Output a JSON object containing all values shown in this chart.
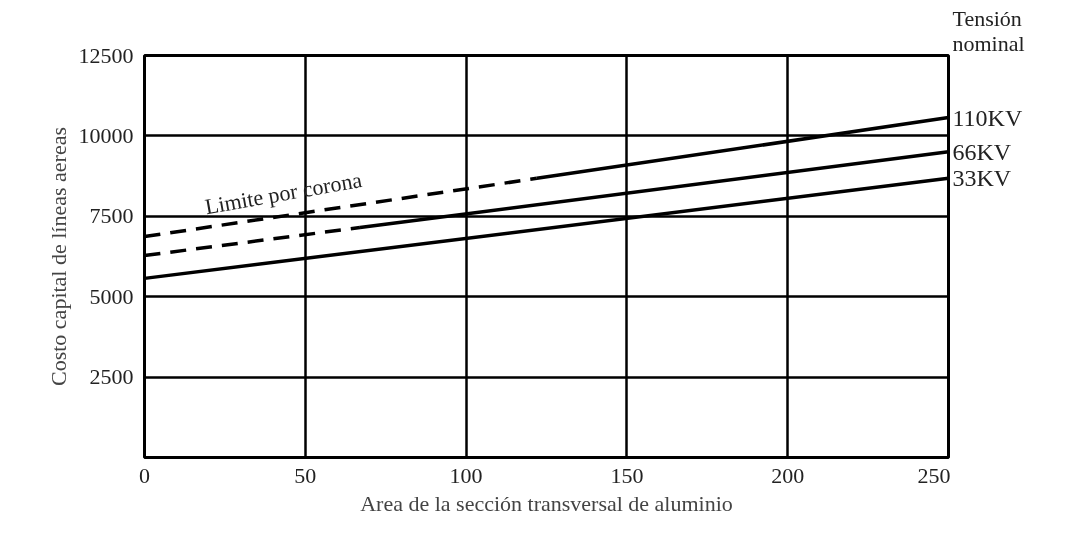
{
  "chart_data": {
    "type": "line",
    "xlabel": "Area de la sección transversal de aluminio",
    "ylabel": "Costo capital de líneas aereas",
    "legend_title": "Tensión\nnominal",
    "xlim": [
      0,
      250
    ],
    "ylim": [
      0,
      12500
    ],
    "xticks": [
      0,
      50,
      100,
      150,
      200,
      250
    ],
    "yticks": [
      2500,
      5000,
      7500,
      10000,
      12500
    ],
    "grid": true,
    "marker": "none",
    "series": [
      {
        "x": [
          0,
          122
        ],
        "values": [
          6870,
          8680
        ],
        "color": "#000000",
        "line_style": "dashed"
      },
      {
        "name": "110KV",
        "x": [
          122,
          250
        ],
        "values": [
          8680,
          10570
        ],
        "color": "#000000",
        "line_style": "solid"
      },
      {
        "x": [
          0,
          67
        ],
        "values": [
          6280,
          7150
        ],
        "color": "#000000",
        "line_style": "dashed"
      },
      {
        "name": "66KV",
        "x": [
          67,
          250
        ],
        "values": [
          7150,
          9510
        ],
        "color": "#000000",
        "line_style": "solid"
      },
      {
        "name": "33KV",
        "x": [
          0,
          250
        ],
        "values": [
          5570,
          8680
        ],
        "color": "#000000",
        "line_style": "solid"
      }
    ],
    "annotations": [
      "Limite por corona"
    ]
  }
}
